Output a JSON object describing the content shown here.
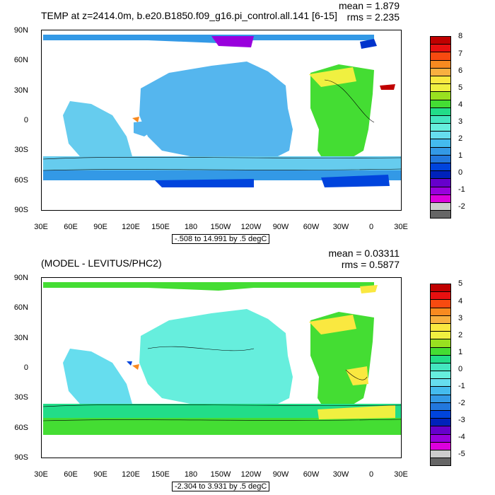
{
  "panels": [
    {
      "title": "TEMP at z=2414.0m, b.e20.B1850.f09_g16.pi_control.all.141 [6-15]",
      "mean": "mean = 1.879",
      "rms": "rms = 2.235",
      "range": "-.508 to 14.991 by .5 degC",
      "lat_labels": [
        "90N",
        "60N",
        "30N",
        "0",
        "30S",
        "60S",
        "90S"
      ],
      "lon_labels": [
        "30E",
        "60E",
        "90E",
        "120E",
        "150E",
        "180",
        "150W",
        "120W",
        "90W",
        "60W",
        "30W",
        "0",
        "30E"
      ],
      "colorbar_labels": [
        "8",
        "7",
        "6",
        "5",
        "4",
        "3",
        "2",
        "1",
        "0",
        "-1",
        "-2"
      ],
      "colorbar_colors": [
        "#c00000",
        "#e81010",
        "#f84a10",
        "#f88a20",
        "#f8b040",
        "#fae840",
        "#f0f040",
        "#99e020",
        "#44dd33",
        "#22dd88",
        "#44e6c0",
        "#66eedd",
        "#66ddee",
        "#44bbee",
        "#3399e6",
        "#2277dd",
        "#0044dd",
        "#0022bb",
        "#6600cc",
        "#9900dd",
        "#dd00dd",
        "#cccccc",
        "#666666"
      ]
    },
    {
      "title": "(MODEL - LEVITUS/PHC2)",
      "mean": "mean = 0.03311",
      "rms": "rms = 0.5877",
      "range": "-2.304 to 3.931 by .5 degC",
      "lat_labels": [
        "90N",
        "60N",
        "30N",
        "0",
        "30S",
        "60S",
        "90S"
      ],
      "lon_labels": [
        "30E",
        "60E",
        "90E",
        "120E",
        "150E",
        "180",
        "150W",
        "120W",
        "90W",
        "60W",
        "30W",
        "0",
        "30E"
      ],
      "colorbar_labels": [
        "5",
        "4",
        "3",
        "2",
        "1",
        "0",
        "-1",
        "-2",
        "-3",
        "-4",
        "-5"
      ],
      "colorbar_colors": [
        "#c00000",
        "#e81010",
        "#f84a10",
        "#f88a20",
        "#f8b040",
        "#fae840",
        "#f0f040",
        "#99e020",
        "#44dd33",
        "#22dd88",
        "#44e6c0",
        "#66eedd",
        "#66ddee",
        "#44bbee",
        "#3399e6",
        "#2277dd",
        "#0044dd",
        "#0022bb",
        "#6600cc",
        "#9900dd",
        "#dd00dd",
        "#cccccc",
        "#666666"
      ]
    }
  ]
}
